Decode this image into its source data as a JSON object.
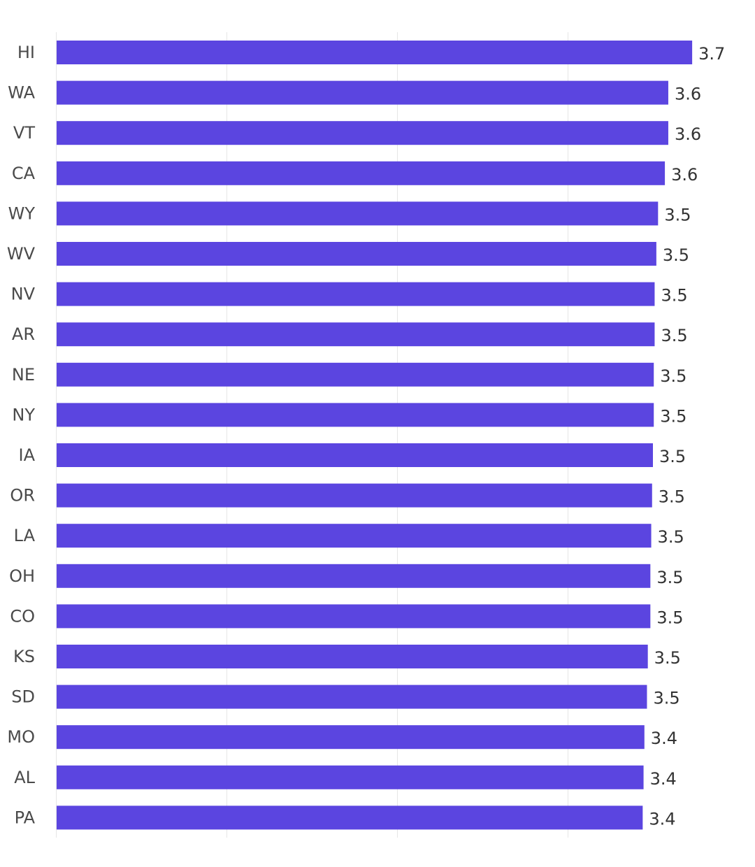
{
  "chart_data": {
    "type": "bar",
    "orientation": "horizontal",
    "title": "",
    "xlabel": "",
    "ylabel": "",
    "categories": [
      "HI",
      "WA",
      "VT",
      "CA",
      "WY",
      "WV",
      "NV",
      "AR",
      "NE",
      "NY",
      "IA",
      "OR",
      "LA",
      "OH",
      "CO",
      "KS",
      "SD",
      "MO",
      "AL",
      "PA"
    ],
    "values": [
      3.73,
      3.59,
      3.59,
      3.57,
      3.53,
      3.52,
      3.51,
      3.51,
      3.505,
      3.505,
      3.5,
      3.495,
      3.49,
      3.485,
      3.485,
      3.47,
      3.465,
      3.45,
      3.445,
      3.44
    ],
    "value_labels": [
      "3.7",
      "3.6",
      "3.6",
      "3.6",
      "3.5",
      "3.5",
      "3.5",
      "3.5",
      "3.5",
      "3.5",
      "3.5",
      "3.5",
      "3.5",
      "3.5",
      "3.5",
      "3.5",
      "3.5",
      "3.4",
      "3.4",
      "3.4"
    ],
    "xlim": [
      0,
      4
    ],
    "x_gridlines": [
      0,
      1,
      2,
      3
    ],
    "x_tick_labels_shown": false,
    "grid": true,
    "legend": "none",
    "bar_color": "#5b45e0",
    "grid_color": "#e6e6e6"
  }
}
